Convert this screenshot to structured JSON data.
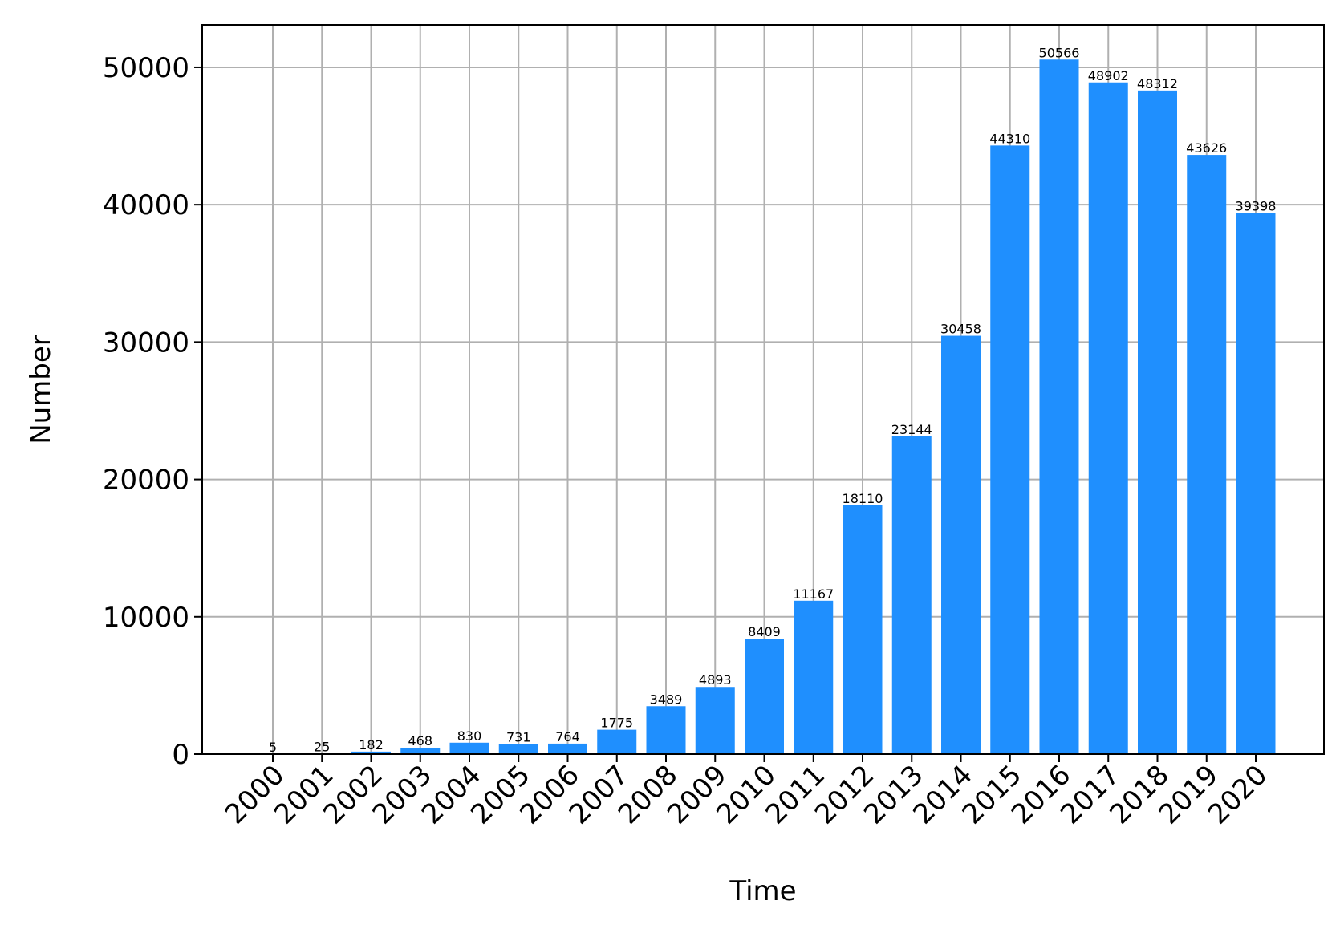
{
  "chart_data": {
    "type": "bar",
    "title": "",
    "xlabel": "Time",
    "ylabel": "Number",
    "categories": [
      "2000",
      "2001",
      "2002",
      "2003",
      "2004",
      "2005",
      "2006",
      "2007",
      "2008",
      "2009",
      "2010",
      "2011",
      "2012",
      "2013",
      "2014",
      "2015",
      "2016",
      "2017",
      "2018",
      "2019",
      "2020"
    ],
    "values": [
      5,
      25,
      182,
      468,
      830,
      731,
      764,
      1775,
      3489,
      4893,
      8409,
      11167,
      18110,
      23144,
      30458,
      44310,
      50566,
      48902,
      48312,
      43626,
      39398
    ],
    "data_labels": [
      "5",
      "25",
      "182",
      "468",
      "830",
      "731",
      "764",
      "1775",
      "3489",
      "4893",
      "8409",
      "11167",
      "18110",
      "23144",
      "30458",
      "44310",
      "50566",
      "48902",
      "48312",
      "43626",
      "39398"
    ],
    "yticks": [
      0,
      10000,
      20000,
      30000,
      40000,
      50000
    ],
    "ytick_labels": [
      "0",
      "10000",
      "20000",
      "30000",
      "40000",
      "50000"
    ],
    "ylim": [
      0,
      53093
    ],
    "grid": true,
    "legend": "none",
    "colors": {
      "bar": "#1f8ffe",
      "grid": "#b0b0b0",
      "axes": "#000000"
    }
  }
}
